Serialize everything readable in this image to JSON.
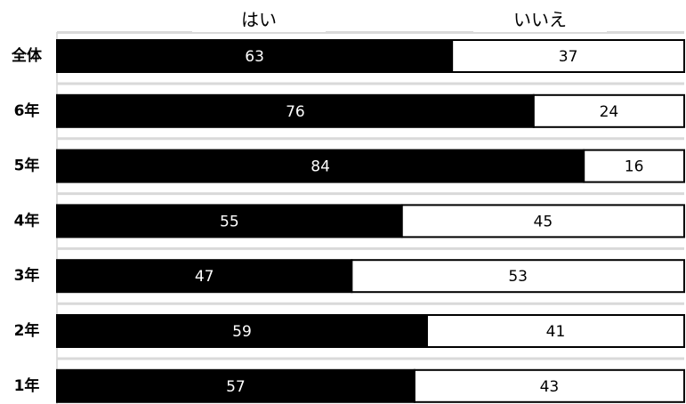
{
  "chart_data": {
    "type": "bar",
    "orientation": "horizontal",
    "stacked": true,
    "percent_stacked": true,
    "categories": [
      "全体",
      "6年",
      "5年",
      "4年",
      "3年",
      "2年",
      "1年"
    ],
    "series": [
      {
        "name": "はい",
        "values": [
          63,
          76,
          84,
          55,
          47,
          59,
          57
        ],
        "color": "#000000",
        "label_color": "#ffffff"
      },
      {
        "name": "いいえ",
        "values": [
          37,
          24,
          16,
          45,
          53,
          41,
          43
        ],
        "color": "#ffffff",
        "label_color": "#000000"
      }
    ],
    "xlim": [
      0,
      100
    ],
    "legend_position": "top",
    "grid": true,
    "gridline_color": "#d9d9d9",
    "data_labels": true
  }
}
